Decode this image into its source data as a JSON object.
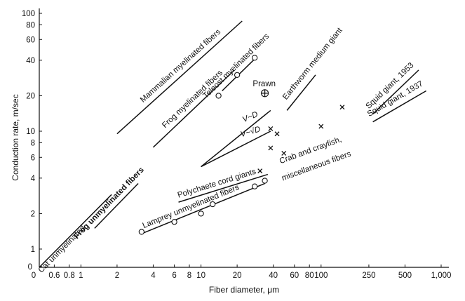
{
  "chart_data": {
    "type": "scatter",
    "title": "",
    "xlabel": "Fiber diameter, μm",
    "ylabel": "Conduction rate, m/sec",
    "xscale": "log",
    "yscale": "log",
    "xlim": [
      0.45,
      1000
    ],
    "ylim": [
      0.7,
      100
    ],
    "x_ticks": [
      {
        "value": 0.6,
        "label": "0.6"
      },
      {
        "value": 0.8,
        "label": "0.8"
      },
      {
        "value": 1,
        "label": "1"
      },
      {
        "value": 2,
        "label": "2"
      },
      {
        "value": 4,
        "label": "4"
      },
      {
        "value": 6,
        "label": "6"
      },
      {
        "value": 8,
        "label": "8"
      },
      {
        "value": 10,
        "label": "10"
      },
      {
        "value": 20,
        "label": "20"
      },
      {
        "value": 40,
        "label": "40"
      },
      {
        "value": 60,
        "label": "60"
      },
      {
        "value": 80,
        "label": "80"
      },
      {
        "value": 100,
        "label": "100"
      },
      {
        "value": 250,
        "label": "250"
      },
      {
        "value": 500,
        "label": "500"
      },
      {
        "value": 1000,
        "label": "1,000"
      }
    ],
    "x_origin_label": "0",
    "y_ticks": [
      {
        "value": 1,
        "label": "1"
      },
      {
        "value": 2,
        "label": "2"
      },
      {
        "value": 4,
        "label": "4"
      },
      {
        "value": 6,
        "label": "6"
      },
      {
        "value": 8,
        "label": "8"
      },
      {
        "value": 10,
        "label": "10"
      },
      {
        "value": 20,
        "label": "20"
      },
      {
        "value": 40,
        "label": "40"
      },
      {
        "value": 60,
        "label": "60"
      },
      {
        "value": 80,
        "label": "80"
      },
      {
        "value": 100,
        "label": "100"
      }
    ],
    "y_origin_label": "0",
    "series": [
      {
        "name": "Cat unmyelinated",
        "x": [
          0.45,
          1.8
        ],
        "y": [
          0.7,
          2.9
        ],
        "bold": false
      },
      {
        "name": "Frog unmyelinated fibers",
        "x": [
          1.3,
          3.0
        ],
        "y": [
          1.5,
          3.6
        ],
        "bold": true
      },
      {
        "name": "Mammalian myelinated fibers",
        "x": [
          2.0,
          22.0
        ],
        "y": [
          9.5,
          86.0
        ],
        "bold": false
      },
      {
        "name": "Frog myelinated fibers",
        "x": [
          4.0,
          19.0
        ],
        "y": [
          7.3,
          33.0
        ],
        "bold": false
      },
      {
        "name": "Teleost myelinated fibers",
        "x": [
          15.0,
          28.0
        ],
        "y": [
          22.0,
          41.0
        ],
        "bold": false
      },
      {
        "name": "Earthworm medium giant",
        "x": [
          52.0,
          90.0
        ],
        "y": [
          15.0,
          30.0
        ],
        "bold": false
      },
      {
        "name": "Squid giant, 1953",
        "x": [
          270.0,
          650.0
        ],
        "y": [
          14.0,
          33.0
        ],
        "bold": false
      },
      {
        "name": "Squid giant, 1937",
        "x": [
          270.0,
          750.0
        ],
        "y": [
          12.0,
          22.0
        ],
        "bold": false
      },
      {
        "name": "Polychaete cord giants",
        "x": [
          6.5,
          36.0
        ],
        "y": [
          2.5,
          4.3
        ],
        "bold": false
      },
      {
        "name": "Lamprey unmyelinated fibers",
        "x": [
          3.2,
          34.0
        ],
        "y": [
          1.35,
          3.6
        ],
        "bold": false
      }
    ],
    "reference_lines": [
      {
        "label": "V~D",
        "x": [
          10,
          38
        ],
        "y": [
          5,
          15
        ]
      },
      {
        "label": "V~√D",
        "x": [
          10,
          38
        ],
        "y": [
          5,
          10
        ]
      }
    ],
    "points": [
      {
        "marker": "o",
        "x": 3.2,
        "y": 1.4
      },
      {
        "marker": "o",
        "x": 6.0,
        "y": 1.7
      },
      {
        "marker": "o",
        "x": 10.0,
        "y": 2.0
      },
      {
        "marker": "o",
        "x": 12.5,
        "y": 2.4
      },
      {
        "marker": "o",
        "x": 28.0,
        "y": 3.4
      },
      {
        "marker": "o",
        "x": 34.0,
        "y": 3.8
      },
      {
        "marker": "o",
        "x": 14.0,
        "y": 20.0
      },
      {
        "marker": "o",
        "x": 20.0,
        "y": 30.0
      },
      {
        "marker": "o",
        "x": 28.0,
        "y": 42.0
      },
      {
        "marker": "x",
        "x": 31.0,
        "y": 4.6
      },
      {
        "marker": "x",
        "x": 38.0,
        "y": 10.5
      },
      {
        "marker": "x",
        "x": 43.0,
        "y": 9.5
      },
      {
        "marker": "x",
        "x": 38.0,
        "y": 7.2
      },
      {
        "marker": "x",
        "x": 49.0,
        "y": 6.5
      },
      {
        "marker": "x",
        "x": 100.0,
        "y": 11.0
      },
      {
        "marker": "x",
        "x": 150.0,
        "y": 16.0
      },
      {
        "marker": "circle-plus",
        "x": 34.0,
        "y": 21.0
      }
    ],
    "annotations": [
      {
        "text": "Prawn",
        "x": 27.0,
        "y": 24.0
      },
      {
        "text": "Crab and crayfish,",
        "x": 46.0,
        "y": 5.3
      },
      {
        "text": "miscellaneous fibers",
        "x": 48.0,
        "y": 3.8
      }
    ]
  }
}
